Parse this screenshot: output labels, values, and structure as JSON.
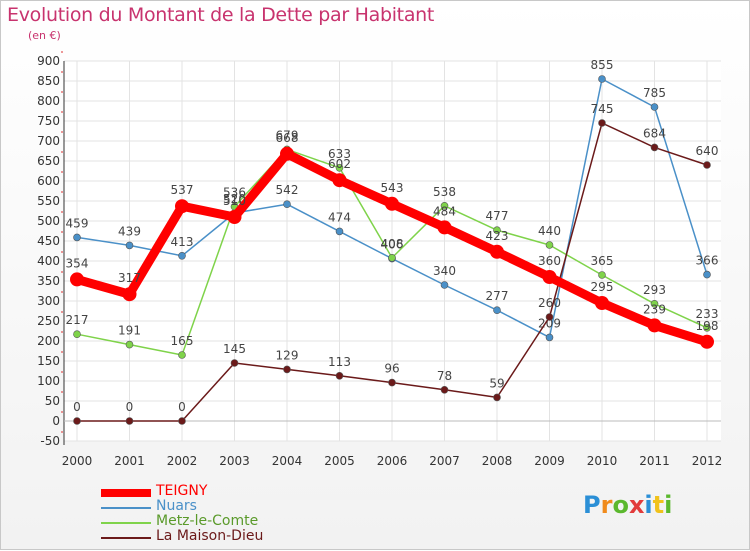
{
  "header": {
    "title": "Evolution du Montant de la Dette par Habitant",
    "subtitle": "(en €)"
  },
  "logo": {
    "letters": [
      "P",
      "r",
      "o",
      "x",
      "i",
      "t",
      "i"
    ]
  },
  "chart_data": {
    "type": "line",
    "title": "Evolution du Montant de la Dette par Habitant",
    "ylabel": "(en €)",
    "xlabel": "",
    "x": [
      "2000",
      "2001",
      "2002",
      "2003",
      "2004",
      "2005",
      "2006",
      "2007",
      "2008",
      "2009",
      "2010",
      "2011",
      "2012"
    ],
    "ylim": [
      -50,
      900
    ],
    "yticks": [
      -50,
      0,
      50,
      100,
      150,
      200,
      250,
      300,
      350,
      400,
      450,
      500,
      550,
      600,
      650,
      700,
      750,
      800,
      850,
      900
    ],
    "grid": true,
    "legend_position": "bottom-left",
    "series": [
      {
        "name": "TEIGNY",
        "color": "#ff0000",
        "values": [
          354,
          317,
          537,
          510,
          668,
          602,
          543,
          484,
          423,
          360,
          295,
          239,
          198
        ]
      },
      {
        "name": "Nuars",
        "color": "#4a90c8",
        "values": [
          459,
          439,
          413,
          520,
          542,
          474,
          406,
          340,
          277,
          209,
          855,
          785,
          366
        ]
      },
      {
        "name": "Metz-le-Comte",
        "color": "#7fd34a",
        "values": [
          217,
          191,
          165,
          536,
          679,
          633,
          408,
          538,
          477,
          440,
          365,
          293,
          233
        ]
      },
      {
        "name": "La Maison-Dieu",
        "color": "#6b1a1a",
        "values": [
          0,
          0,
          0,
          145,
          129,
          113,
          96,
          78,
          59,
          260,
          745,
          684,
          640
        ]
      }
    ]
  }
}
